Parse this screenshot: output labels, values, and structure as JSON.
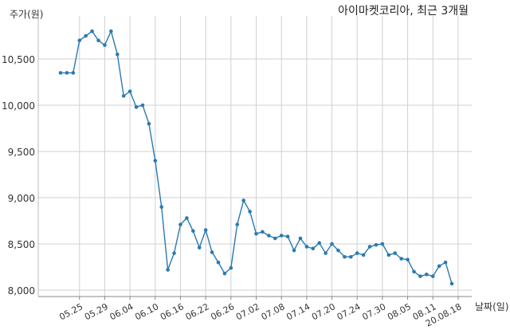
{
  "chart_data": {
    "type": "line",
    "title": "아이마켓코리아, 최근 3개월",
    "ylabel": "주가(원)",
    "xlabel": "날짜(일)",
    "ylim": [
      7950,
      10950
    ],
    "yticks": [
      8000,
      8500,
      9000,
      9500,
      10000,
      10500
    ],
    "ytick_labels": [
      "8,000",
      "8,500",
      "9,000",
      "9,500",
      "10,000",
      "10,500"
    ],
    "xtick_labels": [
      "05.25",
      "05.29",
      "06.04",
      "06.10",
      "06.16",
      "06.22",
      "06.26",
      "07.02",
      "07.08",
      "07.14",
      "07.20",
      "07.24",
      "07.30",
      "08.05",
      "08.11",
      "20.08.18"
    ],
    "xtick_indices": [
      3,
      7,
      11,
      15,
      19,
      23,
      27,
      31,
      35,
      39,
      43,
      47,
      51,
      55,
      59,
      63
    ],
    "grid": true,
    "line_color": "#2a7ab0",
    "series": [
      {
        "values": [
          10350,
          10350,
          10350,
          10700,
          10750,
          10800,
          10700,
          10650,
          10800,
          10550,
          10100,
          10150,
          9980,
          10000,
          9800,
          9400,
          8900,
          8220,
          8400,
          8710,
          8780,
          8640,
          8460,
          8650,
          8410,
          8300,
          8180,
          8240,
          8710,
          8970,
          8850,
          8610,
          8630,
          8590,
          8560,
          8590,
          8580,
          8430,
          8560,
          8470,
          8450,
          8510,
          8400,
          8500,
          8430,
          8360,
          8360,
          8400,
          8380,
          8470,
          8490,
          8500,
          8380,
          8400,
          8340,
          8330,
          8200,
          8150,
          8170,
          8150,
          8260,
          8300,
          8070
        ]
      }
    ]
  }
}
